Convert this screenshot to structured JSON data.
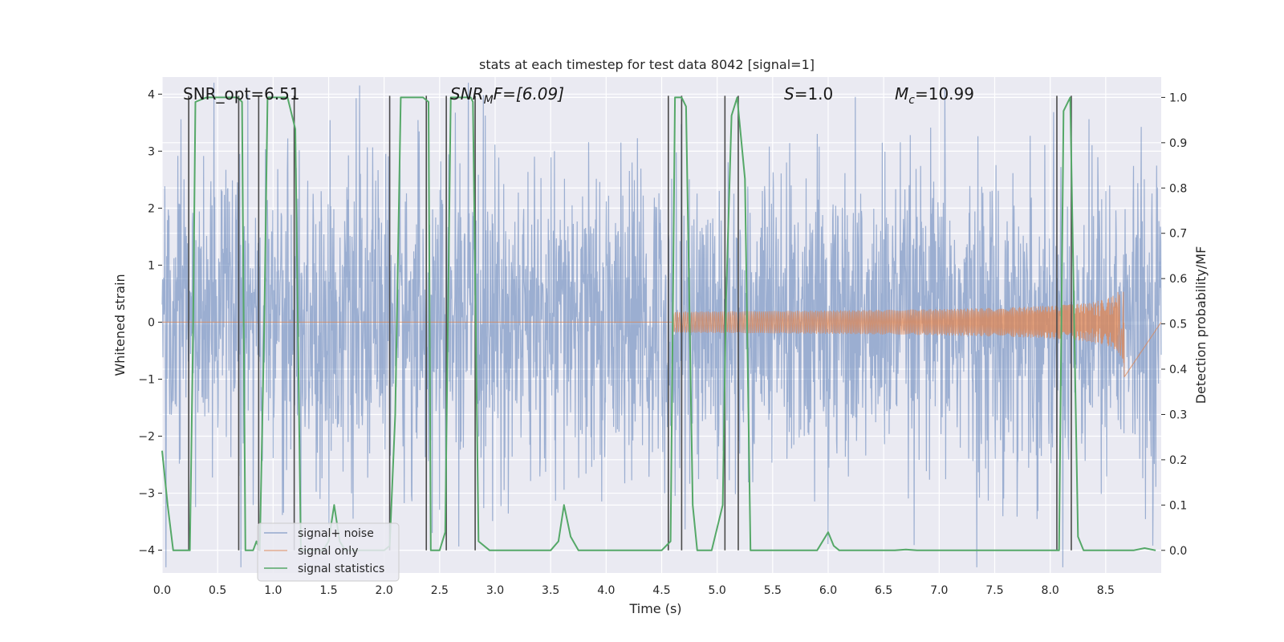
{
  "chart_data": {
    "type": "line",
    "title": "stats at each timestep for test data 8042 [signal=1]",
    "xlabel": "Time (s)",
    "ylabel": "Whitened strain",
    "ylabel_right": "Detection probability/MF",
    "xlim": [
      0,
      9.0
    ],
    "ylim": [
      -4.4,
      4.3
    ],
    "ylim_right": [
      -0.05,
      1.045
    ],
    "x_ticks": [
      "0.0",
      "0.5",
      "1.0",
      "1.5",
      "2.0",
      "2.5",
      "3.0",
      "3.5",
      "4.0",
      "4.5",
      "5.0",
      "5.5",
      "6.0",
      "6.5",
      "7.0",
      "7.5",
      "8.0",
      "8.5"
    ],
    "y_ticks": [
      "−4",
      "−3",
      "−2",
      "−1",
      "0",
      "1",
      "2",
      "3",
      "4"
    ],
    "y_ticks_right": [
      "0.0",
      "0.1",
      "0.2",
      "0.3",
      "0.4",
      "0.5",
      "0.6",
      "0.7",
      "0.8",
      "0.9",
      "1.0"
    ],
    "annotations": {
      "snr_opt": "SNR_opt=6.51",
      "snr_mf_main": "SNR",
      "snr_mf_sub": "M",
      "snr_mf_rest": "F=[6.09]",
      "s_main": "S",
      "s_rest": "=1.0",
      "mc_main": "M",
      "mc_sub": "c",
      "mc_rest": "=10.99"
    },
    "legend": {
      "position": "lower-left",
      "entries": [
        {
          "label": "signal+ noise",
          "color": "#4c72b0"
        },
        {
          "label": "signal only",
          "color": "#dd8452"
        },
        {
          "label": "signal statistics",
          "color": "#55a868"
        }
      ]
    },
    "series": [
      {
        "name": "signal+ noise",
        "style": "dense noise, amplitude about ±3 with peaks near ±4",
        "x_range": [
          0,
          9.0
        ],
        "amplitude": 2.1
      },
      {
        "name": "signal only",
        "style": "chirp, growing oscillation ending at merger",
        "chirp_start": 4.6,
        "merger_time": 8.67,
        "peak_amplitude": 1.1
      },
      {
        "name": "signal statistics",
        "axis": "right",
        "points": [
          [
            0.0,
            0.22
          ],
          [
            0.05,
            0.1
          ],
          [
            0.1,
            0.0
          ],
          [
            0.25,
            0.0
          ],
          [
            0.28,
            0.5
          ],
          [
            0.3,
            0.99
          ],
          [
            0.4,
            1.0
          ],
          [
            0.68,
            1.0
          ],
          [
            0.72,
            0.99
          ],
          [
            0.75,
            0.0
          ],
          [
            0.82,
            0.0
          ],
          [
            0.85,
            0.02
          ],
          [
            0.88,
            0.0
          ],
          [
            0.92,
            0.5
          ],
          [
            0.95,
            1.0
          ],
          [
            1.13,
            1.0
          ],
          [
            1.2,
            0.93
          ],
          [
            1.25,
            0.0
          ],
          [
            1.45,
            0.0
          ],
          [
            1.5,
            0.02
          ],
          [
            1.55,
            0.1
          ],
          [
            1.6,
            0.02
          ],
          [
            1.65,
            0.0
          ],
          [
            2.0,
            0.0
          ],
          [
            2.05,
            0.01
          ],
          [
            2.1,
            0.3
          ],
          [
            2.15,
            1.0
          ],
          [
            2.35,
            1.0
          ],
          [
            2.4,
            0.99
          ],
          [
            2.42,
            0.0
          ],
          [
            2.5,
            0.0
          ],
          [
            2.55,
            0.04
          ],
          [
            2.6,
            1.0
          ],
          [
            2.78,
            1.0
          ],
          [
            2.8,
            0.99
          ],
          [
            2.85,
            0.02
          ],
          [
            2.95,
            0.0
          ],
          [
            3.25,
            0.0
          ],
          [
            3.5,
            0.0
          ],
          [
            3.57,
            0.02
          ],
          [
            3.62,
            0.1
          ],
          [
            3.68,
            0.03
          ],
          [
            3.75,
            0.0
          ],
          [
            4.5,
            0.0
          ],
          [
            4.58,
            0.02
          ],
          [
            4.62,
            1.0
          ],
          [
            4.68,
            1.0
          ],
          [
            4.72,
            0.98
          ],
          [
            4.78,
            0.1
          ],
          [
            4.82,
            0.0
          ],
          [
            4.95,
            0.0
          ],
          [
            5.05,
            0.1
          ],
          [
            5.08,
            0.55
          ],
          [
            5.13,
            0.96
          ],
          [
            5.18,
            1.0
          ],
          [
            5.25,
            0.82
          ],
          [
            5.3,
            0.0
          ],
          [
            5.9,
            0.0
          ],
          [
            6.0,
            0.04
          ],
          [
            6.05,
            0.01
          ],
          [
            6.1,
            0.0
          ],
          [
            6.6,
            0.0
          ],
          [
            6.7,
            0.002
          ],
          [
            6.8,
            0.0
          ],
          [
            8.08,
            0.0
          ],
          [
            8.12,
            0.97
          ],
          [
            8.18,
            1.0
          ],
          [
            8.25,
            0.03
          ],
          [
            8.3,
            0.0
          ],
          [
            8.75,
            0.0
          ],
          [
            8.85,
            0.005
          ],
          [
            8.95,
            0.0
          ]
        ]
      }
    ],
    "vertical_lines": {
      "color": "#4a4a4a",
      "times": [
        0.24,
        0.69,
        0.87,
        1.19,
        2.05,
        2.38,
        2.56,
        2.82,
        4.56,
        4.68,
        5.07,
        5.19,
        8.06,
        8.19
      ]
    }
  }
}
